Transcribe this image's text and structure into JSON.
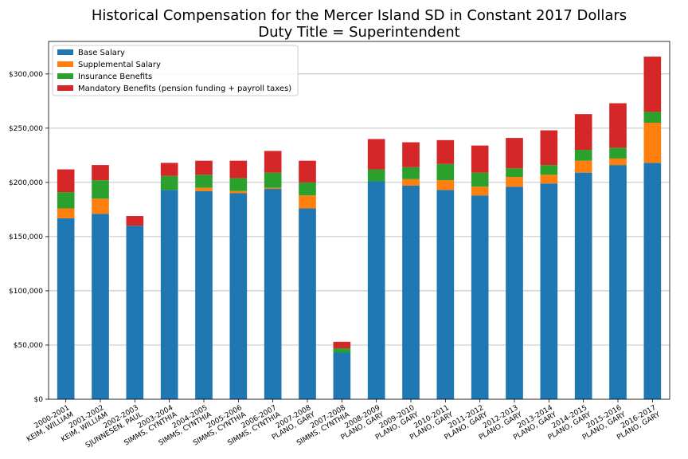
{
  "chart_data": {
    "type": "bar",
    "stacked": true,
    "title": "Historical Compensation for the Mercer Island SD in Constant 2017 Dollars",
    "subtitle": "Duty Title = Superintendent",
    "xlabel": "",
    "ylabel": "",
    "ylim": [
      0,
      330000
    ],
    "yticks": [
      0,
      50000,
      100000,
      150000,
      200000,
      250000,
      300000
    ],
    "ytick_labels": [
      "$0",
      "$50,000",
      "$100,000",
      "$150,000",
      "$200,000",
      "$250,000",
      "$300,000"
    ],
    "grid": "horizontal",
    "legend": "top-left",
    "categories": [
      [
        "2000-2001",
        "KEIM, WILLIAM"
      ],
      [
        "2001-2002",
        "KEIM, WILLIAM"
      ],
      [
        "2002-2003",
        "SJUNNESEN, PAUL"
      ],
      [
        "2003-2004",
        "SIMMS, CYNTHIA"
      ],
      [
        "2004-2005",
        "SIMMS, CYNTHIA"
      ],
      [
        "2005-2006",
        "SIMMS, CYNTHIA"
      ],
      [
        "2006-2007",
        "SIMMS, CYNTHIA"
      ],
      [
        "2007-2008",
        "PLANO, GARY"
      ],
      [
        "2007-2008",
        "SIMMS, CYNTHIA"
      ],
      [
        "2008-2009",
        "PLANO, GARY"
      ],
      [
        "2009-2010",
        "PLANO, GARY"
      ],
      [
        "2010-2011",
        "PLANO, GARY"
      ],
      [
        "2011-2012",
        "PLANO, GARY"
      ],
      [
        "2012-2013",
        "PLANO, GARY"
      ],
      [
        "2013-2014",
        "PLANO, GARY"
      ],
      [
        "2014-2015",
        "PLANO, GARY"
      ],
      [
        "2015-2016",
        "PLANO, GARY"
      ],
      [
        "2016-2017",
        "PLANO, GARY"
      ]
    ],
    "series": [
      {
        "name": "Base Salary",
        "color": "#1f77b4",
        "values": [
          167000,
          171000,
          160000,
          193000,
          192000,
          190000,
          194000,
          176000,
          43000,
          201000,
          197000,
          193000,
          188000,
          196000,
          199000,
          209000,
          216000,
          218000
        ]
      },
      {
        "name": "Supplemental Salary",
        "color": "#ff7f0e",
        "values": [
          9000,
          14000,
          0,
          0,
          3000,
          2000,
          1000,
          12000,
          0,
          0,
          6000,
          9000,
          8000,
          9000,
          8000,
          11000,
          6000,
          37000
        ]
      },
      {
        "name": "Insurance Benefits",
        "color": "#2ca02c",
        "values": [
          15000,
          17000,
          0,
          13000,
          12000,
          12000,
          14000,
          12000,
          4000,
          11000,
          11000,
          15000,
          13000,
          8000,
          9000,
          10000,
          10000,
          10000
        ]
      },
      {
        "name": "Mandatory Benefits (pension funding + payroll taxes)",
        "color": "#d62728",
        "values": [
          21000,
          14000,
          9000,
          12000,
          13000,
          16000,
          20000,
          20000,
          6000,
          28000,
          23000,
          22000,
          25000,
          28000,
          32000,
          33000,
          41000,
          51000
        ]
      }
    ]
  }
}
